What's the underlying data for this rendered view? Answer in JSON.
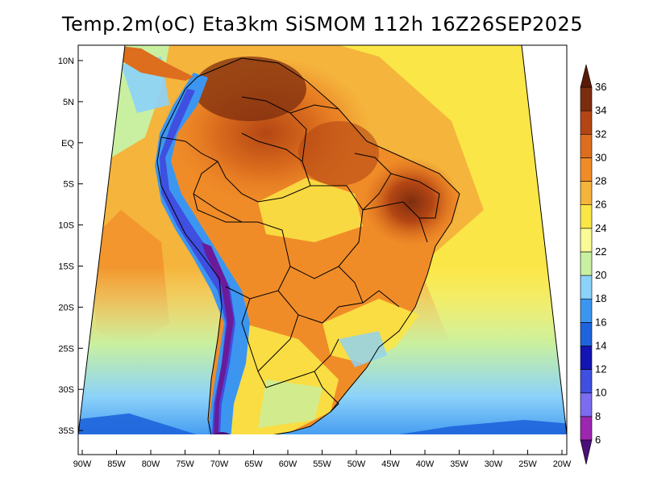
{
  "title": "Temp.2m(oC) Eta3km SiSMOM 112h 16Z26SEP2025",
  "lat_labels": [
    "10N",
    "5N",
    "EQ",
    "5S",
    "10S",
    "15S",
    "20S",
    "25S",
    "30S",
    "35S"
  ],
  "lon_labels": [
    "90W",
    "85W",
    "80W",
    "75W",
    "70W",
    "65W",
    "60W",
    "55W",
    "50W",
    "45W",
    "40W",
    "35W",
    "30W",
    "25W",
    "20W"
  ],
  "colorbar": {
    "labels": [
      "6",
      "8",
      "10",
      "12",
      "14",
      "16",
      "18",
      "20",
      "22",
      "24",
      "26",
      "28",
      "30",
      "32",
      "34",
      "36"
    ],
    "colors": [
      "#6a1b9a",
      "#9c27b0",
      "#7c6cf0",
      "#3f4fe0",
      "#1414b4",
      "#1e64dc",
      "#3c96f0",
      "#8cd2fa",
      "#c8f0a0",
      "#fafa96",
      "#fae646",
      "#f5b43c",
      "#f08c28",
      "#dc6e1e",
      "#b44614",
      "#7d2d0f",
      "#5a1a08"
    ],
    "under_color": "#4b0f78",
    "over_color": "#5a1a08"
  }
}
